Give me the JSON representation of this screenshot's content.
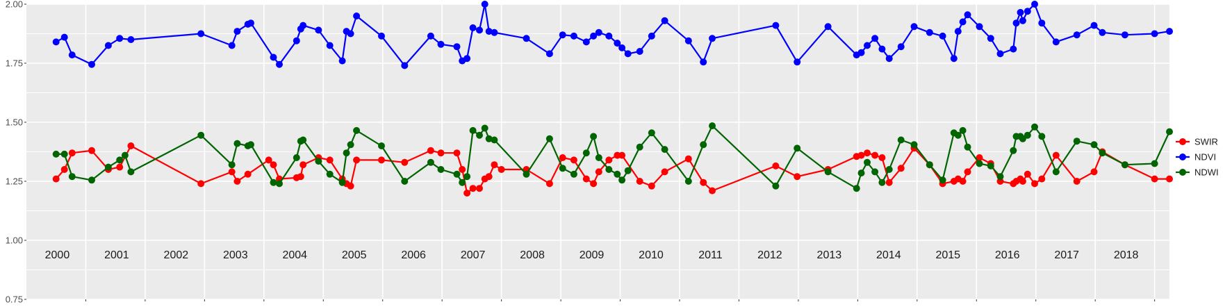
{
  "chart_data": {
    "type": "line",
    "title": "",
    "xlabel": "",
    "ylabel": "",
    "ylim": [
      0.75,
      2.0
    ],
    "xlim": [
      1999.5,
      2018.75
    ],
    "grid": true,
    "legend_position": "right",
    "y_ticks": [
      "0.75",
      "1.00",
      "1.25",
      "1.50",
      "1.75",
      "2.00"
    ],
    "year_labels": [
      "2000",
      "2001",
      "2002",
      "2003",
      "2004",
      "2005",
      "2006",
      "2007",
      "2008",
      "2009",
      "2010",
      "2011",
      "2012",
      "2013",
      "2014",
      "2015",
      "2016",
      "2017",
      "2018"
    ],
    "colors": {
      "background": "#EBEBEB",
      "grid": "#FFFFFF"
    },
    "series": [
      {
        "name": "SWIR",
        "color": "#FF0000",
        "x": [
          2000.0,
          2000.14,
          2000.27,
          2000.6,
          2000.88,
          2001.07,
          2001.26,
          2002.44,
          2002.96,
          2003.05,
          2003.23,
          2003.58,
          2003.66,
          2003.76,
          2004.05,
          2004.12,
          2004.16,
          2004.42,
          2004.61,
          2004.82,
          2004.89,
          2004.96,
          2005.06,
          2005.48,
          2005.87,
          2006.31,
          2006.48,
          2006.75,
          2006.84,
          2006.92,
          2007.02,
          2007.13,
          2007.22,
          2007.29,
          2007.38,
          2007.5,
          2007.92,
          2008.31,
          2008.53,
          2008.72,
          2008.93,
          2009.05,
          2009.14,
          2009.31,
          2009.45,
          2009.53,
          2009.83,
          2010.03,
          2010.25,
          2010.65,
          2010.9,
          2011.05,
          2012.12,
          2012.48,
          2013.0,
          2013.48,
          2013.56,
          2013.66,
          2013.79,
          2013.91,
          2014.03,
          2014.23,
          2014.45,
          2014.71,
          2014.93,
          2015.12,
          2015.19,
          2015.27,
          2015.35,
          2015.55,
          2015.74,
          2015.9,
          2016.12,
          2016.17,
          2016.24,
          2016.28,
          2016.36,
          2016.48,
          2016.6,
          2016.84,
          2017.19,
          2017.48,
          2017.62,
          2018.0,
          2018.5,
          2018.75
        ],
        "y": [
          1.26,
          1.3,
          1.37,
          1.38,
          1.3,
          1.31,
          1.4,
          1.24,
          1.29,
          1.25,
          1.28,
          1.34,
          1.32,
          1.26,
          1.265,
          1.27,
          1.32,
          1.35,
          1.34,
          1.26,
          1.24,
          1.23,
          1.34,
          1.34,
          1.33,
          1.38,
          1.37,
          1.37,
          1.3,
          1.2,
          1.22,
          1.22,
          1.26,
          1.27,
          1.32,
          1.3,
          1.3,
          1.24,
          1.35,
          1.34,
          1.26,
          1.24,
          1.29,
          1.34,
          1.36,
          1.36,
          1.25,
          1.23,
          1.29,
          1.345,
          1.245,
          1.21,
          1.315,
          1.27,
          1.3,
          1.355,
          1.36,
          1.37,
          1.36,
          1.35,
          1.245,
          1.305,
          1.39,
          1.32,
          1.24,
          1.25,
          1.26,
          1.25,
          1.29,
          1.35,
          1.325,
          1.25,
          1.24,
          1.25,
          1.26,
          1.25,
          1.28,
          1.24,
          1.26,
          1.36,
          1.25,
          1.29,
          1.375,
          1.32,
          1.26,
          1.26
        ]
      },
      {
        "name": "NDVI",
        "color": "#0000FF",
        "x": [
          2000.0,
          2000.14,
          2000.27,
          2000.6,
          2000.88,
          2001.07,
          2001.26,
          2002.44,
          2002.96,
          2003.05,
          2003.23,
          2003.28,
          2003.66,
          2003.76,
          2004.05,
          2004.12,
          2004.16,
          2004.42,
          2004.61,
          2004.82,
          2004.89,
          2004.96,
          2005.06,
          2005.48,
          2005.87,
          2006.31,
          2006.48,
          2006.75,
          2006.84,
          2006.92,
          2007.02,
          2007.13,
          2007.22,
          2007.29,
          2007.38,
          2007.92,
          2008.31,
          2008.53,
          2008.72,
          2008.93,
          2009.05,
          2009.14,
          2009.31,
          2009.45,
          2009.53,
          2009.63,
          2009.83,
          2010.03,
          2010.25,
          2010.65,
          2010.9,
          2011.05,
          2012.12,
          2012.48,
          2013.0,
          2013.48,
          2013.56,
          2013.66,
          2013.79,
          2013.91,
          2014.03,
          2014.23,
          2014.45,
          2014.71,
          2014.93,
          2015.12,
          2015.19,
          2015.27,
          2015.35,
          2015.55,
          2015.74,
          2015.9,
          2016.12,
          2016.17,
          2016.24,
          2016.28,
          2016.36,
          2016.48,
          2016.6,
          2016.84,
          2017.19,
          2017.48,
          2017.62,
          2018.0,
          2018.5,
          2018.75
        ],
        "y": [
          1.84,
          1.86,
          1.785,
          1.745,
          1.825,
          1.855,
          1.85,
          1.875,
          1.825,
          1.885,
          1.915,
          1.92,
          1.775,
          1.745,
          1.845,
          1.895,
          1.91,
          1.89,
          1.825,
          1.76,
          1.885,
          1.875,
          1.95,
          1.865,
          1.74,
          1.865,
          1.83,
          1.82,
          1.76,
          1.77,
          1.9,
          1.89,
          2.0,
          1.885,
          1.88,
          1.855,
          1.79,
          1.87,
          1.865,
          1.84,
          1.865,
          1.88,
          1.865,
          1.835,
          1.815,
          1.79,
          1.8,
          1.865,
          1.93,
          1.845,
          1.755,
          1.855,
          1.91,
          1.755,
          1.905,
          1.785,
          1.795,
          1.825,
          1.855,
          1.81,
          1.77,
          1.82,
          1.905,
          1.88,
          1.865,
          1.77,
          1.885,
          1.925,
          1.955,
          1.905,
          1.855,
          1.79,
          1.81,
          1.92,
          1.965,
          1.93,
          1.97,
          2.0,
          1.92,
          1.84,
          1.87,
          1.91,
          1.88,
          1.87,
          1.875,
          1.885
        ]
      },
      {
        "name": "NDWI",
        "color": "#006400",
        "x": [
          2000.0,
          2000.14,
          2000.27,
          2000.6,
          2000.88,
          2001.07,
          2001.16,
          2001.26,
          2002.44,
          2002.96,
          2003.05,
          2003.23,
          2003.28,
          2003.66,
          2003.76,
          2004.05,
          2004.12,
          2004.16,
          2004.42,
          2004.61,
          2004.82,
          2004.89,
          2004.96,
          2005.06,
          2005.48,
          2005.87,
          2006.31,
          2006.48,
          2006.75,
          2006.84,
          2006.92,
          2007.02,
          2007.13,
          2007.22,
          2007.29,
          2007.38,
          2007.92,
          2008.31,
          2008.53,
          2008.72,
          2008.93,
          2009.05,
          2009.14,
          2009.31,
          2009.45,
          2009.53,
          2009.63,
          2009.83,
          2010.03,
          2010.25,
          2010.65,
          2010.9,
          2011.05,
          2012.12,
          2012.48,
          2013.0,
          2013.48,
          2013.56,
          2013.66,
          2013.79,
          2013.91,
          2014.03,
          2014.23,
          2014.45,
          2014.71,
          2014.93,
          2015.12,
          2015.19,
          2015.27,
          2015.35,
          2015.55,
          2015.74,
          2015.9,
          2016.12,
          2016.17,
          2016.24,
          2016.28,
          2016.36,
          2016.48,
          2016.6,
          2016.84,
          2017.19,
          2017.48,
          2017.62,
          2018.0,
          2018.5,
          2018.75
        ],
        "y": [
          1.365,
          1.365,
          1.27,
          1.255,
          1.31,
          1.34,
          1.36,
          1.29,
          1.445,
          1.32,
          1.41,
          1.4,
          1.405,
          1.245,
          1.24,
          1.35,
          1.42,
          1.425,
          1.335,
          1.28,
          1.245,
          1.37,
          1.405,
          1.465,
          1.4,
          1.25,
          1.33,
          1.3,
          1.28,
          1.245,
          1.27,
          1.465,
          1.445,
          1.475,
          1.43,
          1.425,
          1.28,
          1.43,
          1.305,
          1.28,
          1.37,
          1.44,
          1.35,
          1.3,
          1.28,
          1.255,
          1.295,
          1.395,
          1.455,
          1.385,
          1.25,
          1.405,
          1.485,
          1.23,
          1.39,
          1.29,
          1.22,
          1.285,
          1.33,
          1.29,
          1.245,
          1.3,
          1.425,
          1.405,
          1.32,
          1.255,
          1.455,
          1.445,
          1.465,
          1.395,
          1.325,
          1.315,
          1.27,
          1.38,
          1.44,
          1.44,
          1.43,
          1.445,
          1.48,
          1.44,
          1.29,
          1.42,
          1.405,
          1.37,
          1.32,
          1.325,
          1.46
        ]
      }
    ]
  }
}
